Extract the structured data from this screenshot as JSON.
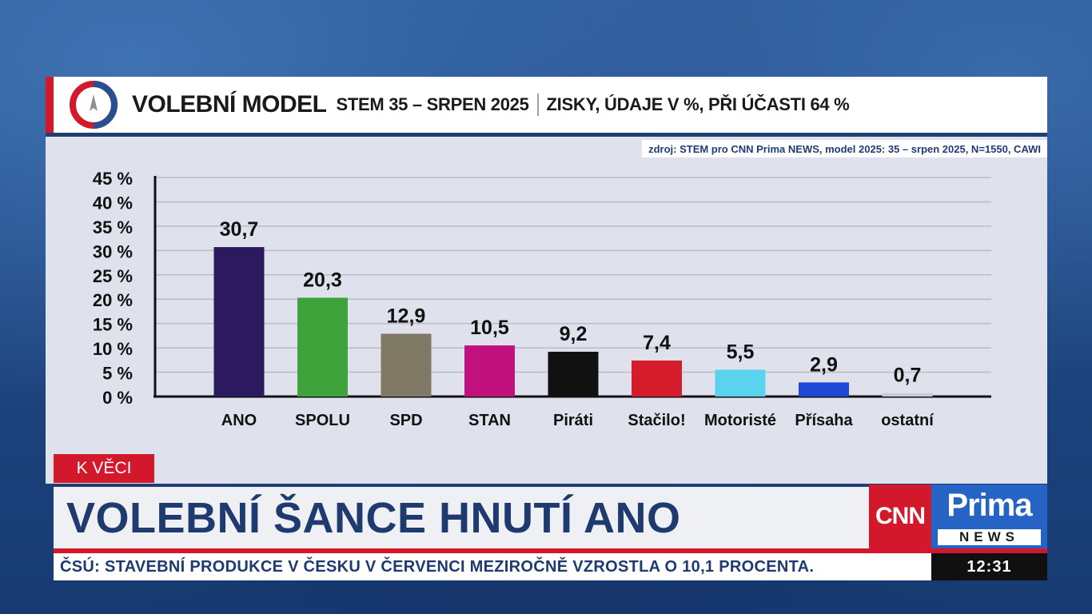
{
  "header": {
    "title": "VOLEBNÍ MODEL",
    "subtitle": "STEM 35 – SRPEN 2025",
    "detail": "ZISKY, ÚDAJE V %, PŘI ÚČASTI 64 %"
  },
  "source": "zdroj: STEM pro CNN Prima NEWS, model 2025: 35 – srpen 2025, N=1550, CAWI",
  "chart_data": {
    "type": "bar",
    "categories": [
      "ANO",
      "SPOLU",
      "SPD",
      "STAN",
      "Piráti",
      "Stačilo!",
      "Motoristé",
      "Přísaha",
      "ostatní"
    ],
    "values": [
      30.7,
      20.3,
      12.9,
      10.5,
      9.2,
      7.4,
      5.5,
      2.9,
      0.7
    ],
    "value_labels": [
      "30,7",
      "20,3",
      "12,9",
      "10,5",
      "9,2",
      "7,4",
      "5,5",
      "2,9",
      "0,7"
    ],
    "colors": [
      "#2b1b5e",
      "#3fa33b",
      "#7e7864",
      "#c1117c",
      "#111111",
      "#d51c2c",
      "#5ad4ee",
      "#1f47d6",
      "#c8ccd6"
    ],
    "yticks": [
      "0 %",
      "5 %",
      "10 %",
      "15 %",
      "20 %",
      "25 %",
      "30 %",
      "35 %",
      "40 %",
      "45 %"
    ],
    "ylim": [
      0,
      45
    ],
    "grid": true
  },
  "lower_third": {
    "tag": "K VĚCI",
    "headline": "VOLEBNÍ ŠANCE HNUTÍ ANO",
    "ticker": "ČSÚ: STAVEBNÍ PRODUKCE V ČESKU V ČERVENCI MEZIROČNĚ VZROSTLA O 10,1 PROCENTA.",
    "clock": "12:31"
  },
  "branding": {
    "cnn": "CNN",
    "prima": "Prima",
    "news": "NEWS"
  }
}
